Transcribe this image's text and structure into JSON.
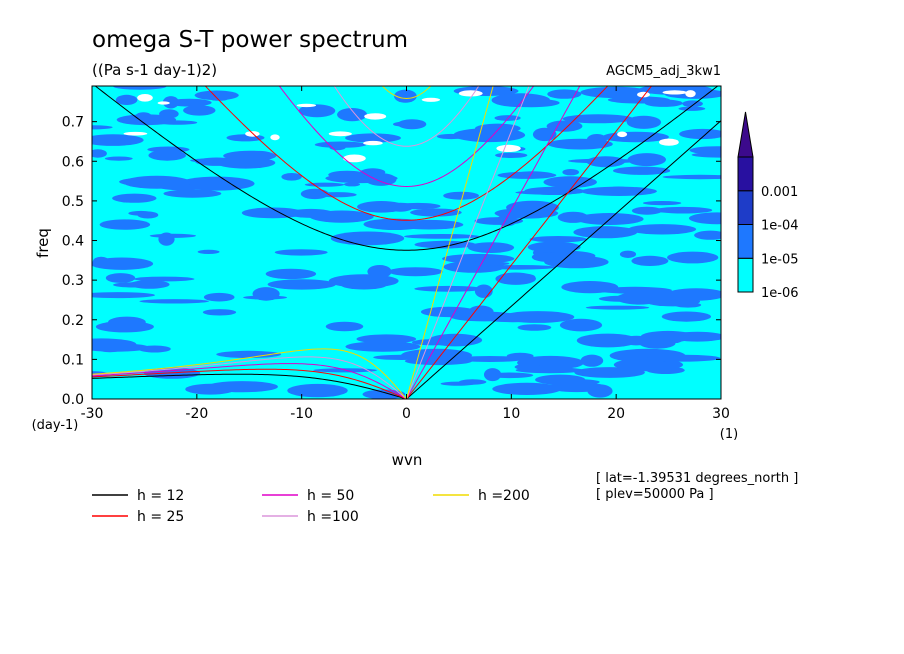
{
  "chart_data": {
    "type": "heatmap",
    "title": "omega S-T power spectrum",
    "subtitle": "((Pa s-1 day-1)2)",
    "run_label": "AGCM5_adj_3kw1",
    "xlabel": "wvn",
    "ylabel": "freq",
    "x_unit": "(1)",
    "y_unit": "(day-1)",
    "xlim": [
      -30,
      30
    ],
    "ylim": [
      0,
      0.79
    ],
    "x_ticks": [
      -30,
      -20,
      -10,
      0,
      10,
      20,
      30
    ],
    "x_tick_labels": [
      "-30",
      "-20",
      "-10",
      "0",
      "10",
      "20",
      "30"
    ],
    "y_ticks": [
      0,
      0.1,
      0.2,
      0.3,
      0.4,
      0.5,
      0.6,
      0.7
    ],
    "y_tick_labels": [
      "0.0",
      "0.1",
      "0.2",
      "0.3",
      "0.4",
      "0.5",
      "0.6",
      "0.7"
    ],
    "colorbar": {
      "labels": [
        "1e-06",
        "1e-05",
        "1e-04",
        "0.001"
      ],
      "levels": [
        1e-06,
        1e-05,
        0.0001,
        0.001
      ],
      "colors": [
        "#00ffff",
        "#1e78ff",
        "#1e3cc8",
        "#2810a0"
      ],
      "over_color": "#3c0a8c",
      "below_color": "#ffffff"
    },
    "dispersion_curves": [
      {
        "label": "h = 12",
        "h": 12,
        "color": "#000000"
      },
      {
        "label": "h = 25",
        "h": 25,
        "color": "#ff0000"
      },
      {
        "label": "h = 50",
        "h": 50,
        "color": "#e000c8"
      },
      {
        "label": "h =100",
        "h": 100,
        "color": "#dc96dc"
      },
      {
        "label": "h =200",
        "h": 200,
        "color": "#f0dc00"
      }
    ],
    "annotations": [
      "[ lat=-1.39531 degrees_north ]",
      "[ plev=50000 Pa ]"
    ],
    "grid": false
  }
}
